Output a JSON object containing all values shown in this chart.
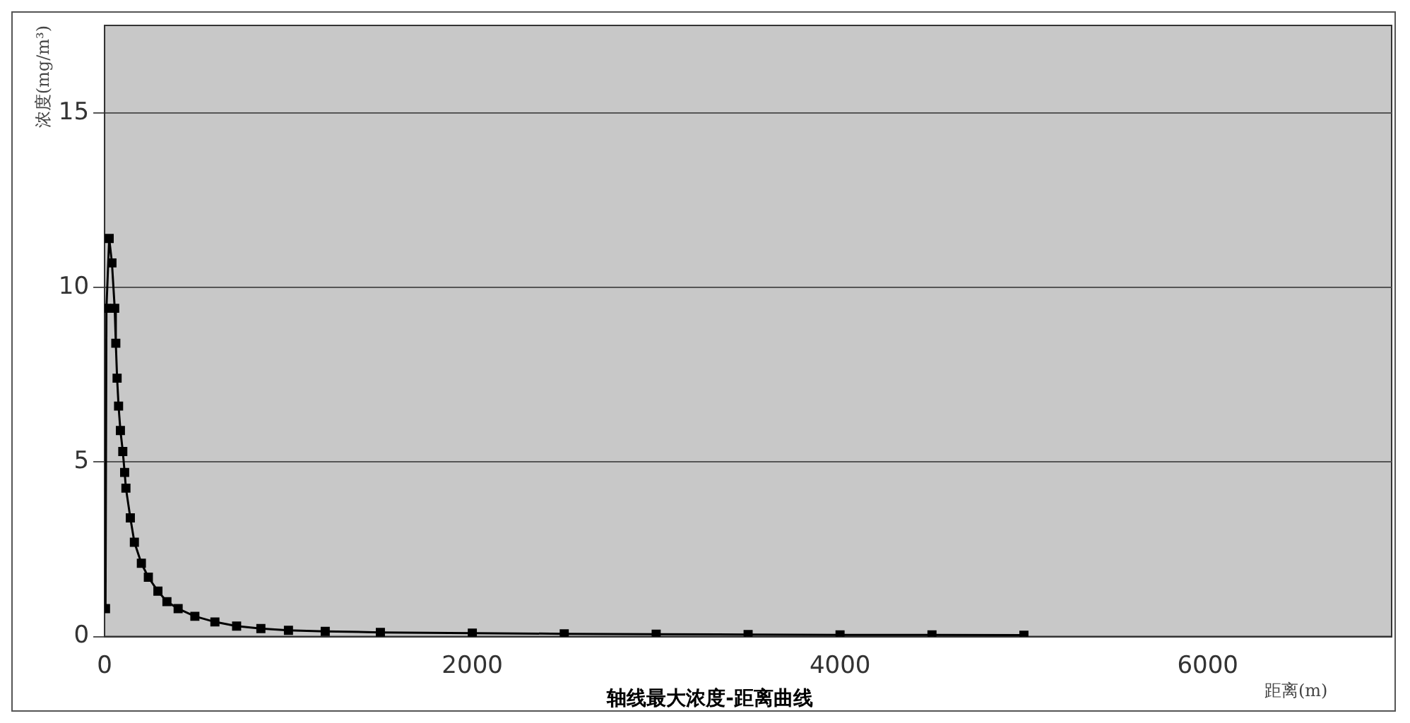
{
  "chart_data": {
    "type": "line",
    "title": "轴线最大浓度-距离曲线",
    "xlabel": "距离(m)",
    "ylabel": "浓度(mg/m³)",
    "x": [
      5,
      10,
      25,
      40,
      55,
      61,
      68,
      76,
      86,
      99,
      109,
      116,
      140,
      162,
      200,
      238,
      290,
      339,
      400,
      491,
      600,
      718,
      850,
      1000,
      1200,
      1500,
      2000,
      2500,
      3000,
      3500,
      4000,
      4500,
      5000
    ],
    "series": [
      {
        "color": "#000000",
        "values": [
          0.8,
          9.4,
          11.4,
          10.7,
          9.4,
          8.4,
          7.4,
          6.6,
          5.9,
          5.3,
          4.7,
          4.25,
          3.4,
          2.7,
          2.1,
          1.7,
          1.3,
          1.0,
          0.8,
          0.58,
          0.42,
          0.3,
          0.23,
          0.18,
          0.15,
          0.12,
          0.1,
          0.08,
          0.07,
          0.06,
          0.05,
          0.05,
          0.04
        ]
      }
    ],
    "xlim": [
      0,
      7000
    ],
    "xticks": [
      0,
      2000,
      4000,
      6000
    ],
    "ylim": [
      0,
      17.5
    ],
    "yticks": [
      0,
      5,
      10,
      15
    ],
    "grid": "y",
    "legend": false,
    "marker": "square",
    "line_style": "solid"
  }
}
